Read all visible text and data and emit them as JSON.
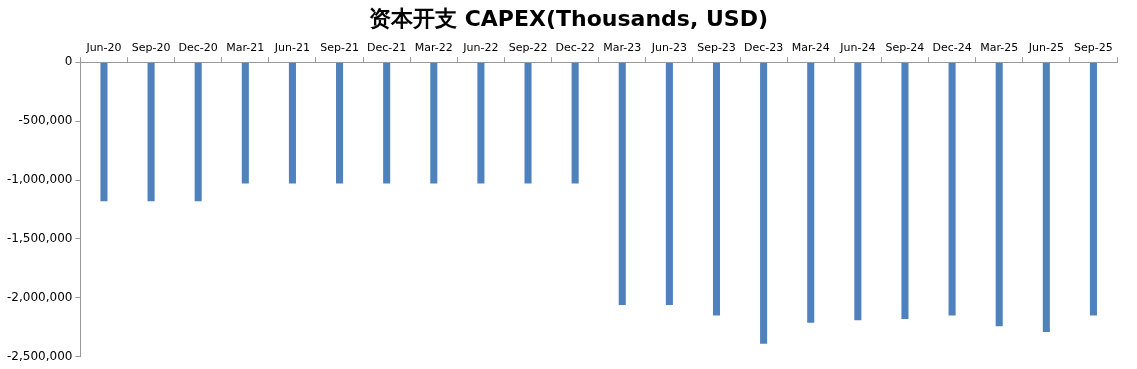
{
  "chart_data": {
    "type": "bar",
    "title": "资本开支 CAPEX(Thousands, USD)",
    "categories": [
      "Jun-20",
      "Sep-20",
      "Dec-20",
      "Mar-21",
      "Jun-21",
      "Sep-21",
      "Dec-21",
      "Mar-22",
      "Jun-22",
      "Sep-22",
      "Dec-22",
      "Mar-23",
      "Jun-23",
      "Sep-23",
      "Dec-23",
      "Mar-24",
      "Jun-24",
      "Sep-24",
      "Dec-24",
      "Mar-25",
      "Jun-25",
      "Sep-25"
    ],
    "values": [
      -1180000,
      -1180000,
      -1180000,
      -1030000,
      -1030000,
      -1030000,
      -1030000,
      -1030000,
      -1030000,
      -1030000,
      -1030000,
      -2060000,
      -2060000,
      -2150000,
      -2390000,
      -2210000,
      -2190000,
      -2180000,
      -2150000,
      -2240000,
      -2290000,
      -2150000
    ],
    "color": "#4f81bd",
    "ylim": [
      -2500000,
      0
    ],
    "yticks": [
      {
        "value": -2500000,
        "label": "-2,500,000"
      },
      {
        "value": -2000000,
        "label": "-2,000,000"
      },
      {
        "value": -1500000,
        "label": "-1,500,000"
      },
      {
        "value": -1000000,
        "label": "-1,000,000"
      },
      {
        "value": -500000,
        "label": "-500,000"
      },
      0
    ],
    "grid": false
  }
}
